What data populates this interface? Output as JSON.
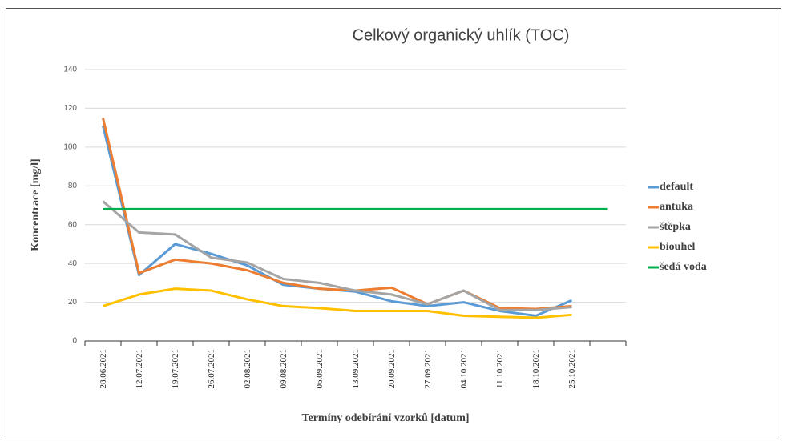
{
  "chart_data": {
    "type": "line",
    "title": "Celkový organický uhlík (TOC)",
    "x_label": "Termíny odebírání vzorků [datum]",
    "y_label": "Koncentrace [mg/l]",
    "categories": [
      "28.06.2021",
      "12.07.2021",
      "19.07.2021",
      "26.07.2021",
      "02.08.2021",
      "09.08.2021",
      "06.09.2021",
      "13.09.2021",
      "20.09.2021",
      "27.09.2021",
      "04.10.2021",
      "11.10.2021",
      "18.10.2021",
      "25.10.2021",
      null
    ],
    "series": [
      {
        "name": "default",
        "color": "#5b9bd5",
        "values": [
          111,
          34,
          50,
          45,
          39,
          29,
          27,
          25.5,
          20.5,
          18,
          20,
          15.5,
          13,
          21,
          null
        ]
      },
      {
        "name": "antuka",
        "color": "#ed7d31",
        "values": [
          115,
          35,
          42,
          40,
          36.5,
          30,
          27,
          26,
          27.5,
          19,
          26,
          17,
          16.5,
          18,
          null
        ]
      },
      {
        "name": "štěpka",
        "color": "#a5a5a5",
        "values": [
          72,
          56,
          55,
          43,
          40.5,
          32,
          30,
          26,
          24,
          19,
          26,
          16,
          16,
          17.5,
          null
        ]
      },
      {
        "name": "biouhel",
        "color": "#ffc000",
        "values": [
          18,
          24,
          27,
          26,
          21.5,
          18,
          17,
          15.5,
          15.5,
          15.5,
          13,
          12.5,
          12,
          13.5,
          null
        ]
      },
      {
        "name": "šedá voda",
        "color": "#00b050",
        "values": [
          68,
          68,
          68,
          68,
          68,
          68,
          68,
          68,
          68,
          68,
          68,
          68,
          68,
          68,
          68
        ]
      }
    ],
    "ylim": [
      0,
      140
    ],
    "yticks": [
      0,
      20,
      40,
      60,
      80,
      100,
      120,
      140
    ],
    "grid": true,
    "legend": "right"
  }
}
